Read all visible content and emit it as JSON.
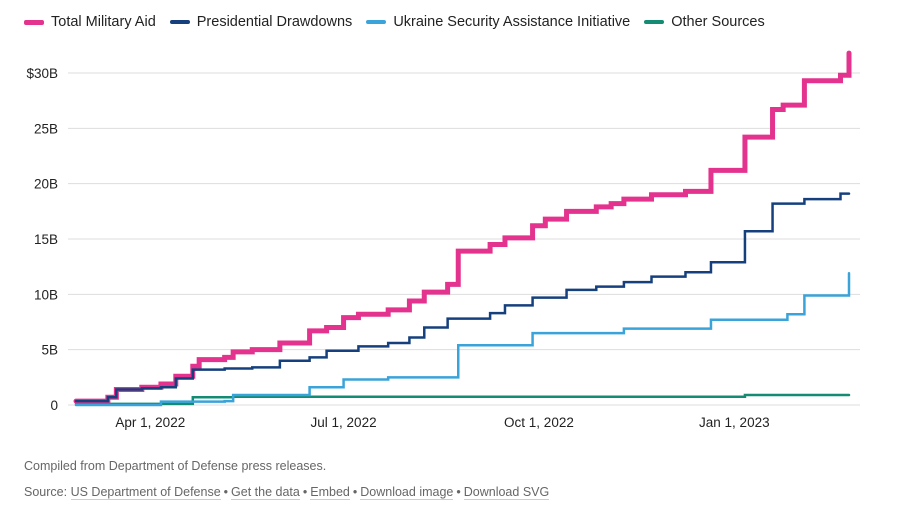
{
  "legend": [
    {
      "label": "Total Military Aid",
      "color": "#e3338e"
    },
    {
      "label": "Presidential Drawdowns",
      "color": "#15407d"
    },
    {
      "label": "Ukraine Security Assistance Initiative",
      "color": "#3aa3d9"
    },
    {
      "label": "Other Sources",
      "color": "#138c73"
    }
  ],
  "footer": {
    "note": "Compiled from Department of Defense press releases.",
    "source_label": "Source:",
    "links": [
      "US Department of Defense",
      "Get the data",
      "Embed",
      "Download image",
      "Download SVG"
    ],
    "separator": "•"
  },
  "chart_data": {
    "type": "line",
    "step": true,
    "title": "",
    "xlabel": "",
    "ylabel": "",
    "x_range": [
      "2022-02-25",
      "2023-02-24"
    ],
    "ylim": [
      0,
      30
    ],
    "y_ticks": [
      0,
      5,
      10,
      15,
      20,
      25,
      30
    ],
    "y_tick_labels": [
      "0",
      "5B",
      "10B",
      "15B",
      "20B",
      "25B",
      "$30B"
    ],
    "x_ticks": [
      "2022-04-01",
      "2022-07-01",
      "2022-10-01",
      "2023-01-01"
    ],
    "x_tick_labels": [
      "Apr 1, 2022",
      "Jul 1, 2022",
      "Oct 1, 2022",
      "Jan 1, 2023"
    ],
    "grid": "horizontal",
    "legend_position": "top-left",
    "units": "billions USD",
    "series": [
      {
        "name": "Total Military Aid",
        "color": "#e3338e",
        "points": [
          [
            "2022-02-25",
            0.35
          ],
          [
            "2022-03-12",
            0.7
          ],
          [
            "2022-03-16",
            1.4
          ],
          [
            "2022-03-28",
            1.6
          ],
          [
            "2022-04-06",
            1.9
          ],
          [
            "2022-04-13",
            2.6
          ],
          [
            "2022-04-21",
            3.5
          ],
          [
            "2022-04-24",
            4.1
          ],
          [
            "2022-05-06",
            4.3
          ],
          [
            "2022-05-10",
            4.8
          ],
          [
            "2022-05-19",
            5.0
          ],
          [
            "2022-06-01",
            5.6
          ],
          [
            "2022-06-15",
            6.7
          ],
          [
            "2022-06-23",
            7.0
          ],
          [
            "2022-07-01",
            7.9
          ],
          [
            "2022-07-08",
            8.2
          ],
          [
            "2022-07-22",
            8.6
          ],
          [
            "2022-08-01",
            9.4
          ],
          [
            "2022-08-08",
            10.2
          ],
          [
            "2022-08-19",
            10.9
          ],
          [
            "2022-08-24",
            13.9
          ],
          [
            "2022-09-08",
            14.5
          ],
          [
            "2022-09-15",
            15.1
          ],
          [
            "2022-09-28",
            16.2
          ],
          [
            "2022-10-04",
            16.8
          ],
          [
            "2022-10-14",
            17.5
          ],
          [
            "2022-10-28",
            17.9
          ],
          [
            "2022-11-04",
            18.2
          ],
          [
            "2022-11-10",
            18.6
          ],
          [
            "2022-11-23",
            19.0
          ],
          [
            "2022-12-09",
            19.3
          ],
          [
            "2022-12-21",
            21.2
          ],
          [
            "2023-01-06",
            24.2
          ],
          [
            "2023-01-19",
            26.7
          ],
          [
            "2023-01-24",
            27.1
          ],
          [
            "2023-02-03",
            29.3
          ],
          [
            "2023-02-20",
            29.8
          ],
          [
            "2023-02-24",
            31.8
          ]
        ]
      },
      {
        "name": "Presidential Drawdowns",
        "color": "#15407d",
        "points": [
          [
            "2022-02-25",
            0.35
          ],
          [
            "2022-03-12",
            0.7
          ],
          [
            "2022-03-16",
            1.4
          ],
          [
            "2022-03-28",
            1.5
          ],
          [
            "2022-04-06",
            1.6
          ],
          [
            "2022-04-13",
            2.4
          ],
          [
            "2022-04-21",
            3.2
          ],
          [
            "2022-05-06",
            3.3
          ],
          [
            "2022-05-19",
            3.4
          ],
          [
            "2022-06-01",
            4.0
          ],
          [
            "2022-06-15",
            4.3
          ],
          [
            "2022-06-23",
            4.9
          ],
          [
            "2022-07-08",
            5.3
          ],
          [
            "2022-07-22",
            5.6
          ],
          [
            "2022-08-01",
            6.1
          ],
          [
            "2022-08-08",
            7.0
          ],
          [
            "2022-08-19",
            7.8
          ],
          [
            "2022-09-08",
            8.3
          ],
          [
            "2022-09-15",
            9.0
          ],
          [
            "2022-09-28",
            9.7
          ],
          [
            "2022-10-14",
            10.4
          ],
          [
            "2022-10-28",
            10.7
          ],
          [
            "2022-11-10",
            11.1
          ],
          [
            "2022-11-23",
            11.6
          ],
          [
            "2022-12-09",
            12.0
          ],
          [
            "2022-12-21",
            12.9
          ],
          [
            "2023-01-06",
            15.7
          ],
          [
            "2023-01-19",
            18.2
          ],
          [
            "2023-02-03",
            18.6
          ],
          [
            "2023-02-20",
            19.1
          ],
          [
            "2023-02-24",
            19.1
          ]
        ]
      },
      {
        "name": "Ukraine Security Assistance Initiative",
        "color": "#3aa3d9",
        "points": [
          [
            "2022-02-25",
            0.0
          ],
          [
            "2022-04-06",
            0.3
          ],
          [
            "2022-05-06",
            0.35
          ],
          [
            "2022-05-10",
            0.9
          ],
          [
            "2022-06-15",
            1.6
          ],
          [
            "2022-07-01",
            2.3
          ],
          [
            "2022-07-22",
            2.5
          ],
          [
            "2022-08-24",
            5.4
          ],
          [
            "2022-09-28",
            6.5
          ],
          [
            "2022-11-10",
            6.9
          ],
          [
            "2022-12-21",
            7.7
          ],
          [
            "2023-01-26",
            8.2
          ],
          [
            "2023-02-03",
            9.9
          ],
          [
            "2023-02-24",
            11.9
          ]
        ]
      },
      {
        "name": "Other Sources",
        "color": "#138c73",
        "points": [
          [
            "2022-02-25",
            0.1
          ],
          [
            "2022-04-21",
            0.7
          ],
          [
            "2022-05-10",
            0.75
          ],
          [
            "2023-01-06",
            0.9
          ],
          [
            "2023-02-24",
            0.9
          ]
        ]
      }
    ]
  }
}
